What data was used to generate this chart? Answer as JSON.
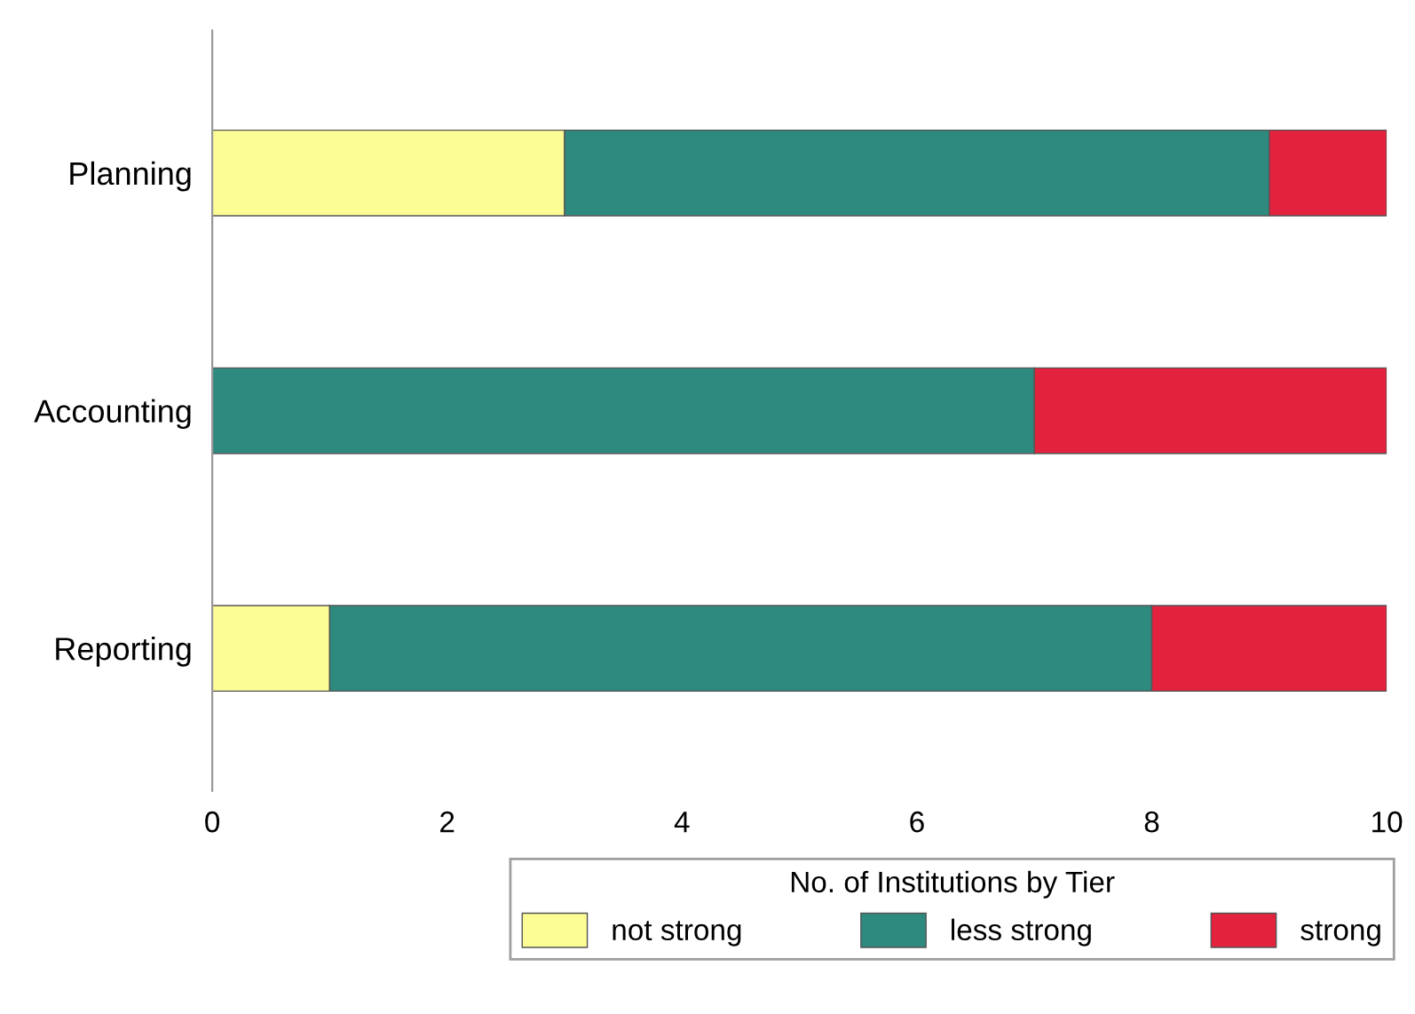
{
  "chart_data": {
    "type": "bar",
    "orientation": "horizontal",
    "stacked": true,
    "categories": [
      "Planning",
      "Accounting",
      "Reporting"
    ],
    "series": [
      {
        "name": "not strong",
        "color": "#fdfd96",
        "values": [
          3,
          0,
          1
        ]
      },
      {
        "name": "less strong",
        "color": "#2e8a7e",
        "values": [
          6,
          7,
          7
        ]
      },
      {
        "name": "strong",
        "color": "#e3223d",
        "values": [
          1,
          3,
          2
        ]
      }
    ],
    "xlim": [
      0,
      10
    ],
    "xticks": [
      0,
      2,
      4,
      6,
      8,
      10
    ],
    "legend": "bottom",
    "legend_title": "No. of Institutions by Tier",
    "grid": false
  }
}
